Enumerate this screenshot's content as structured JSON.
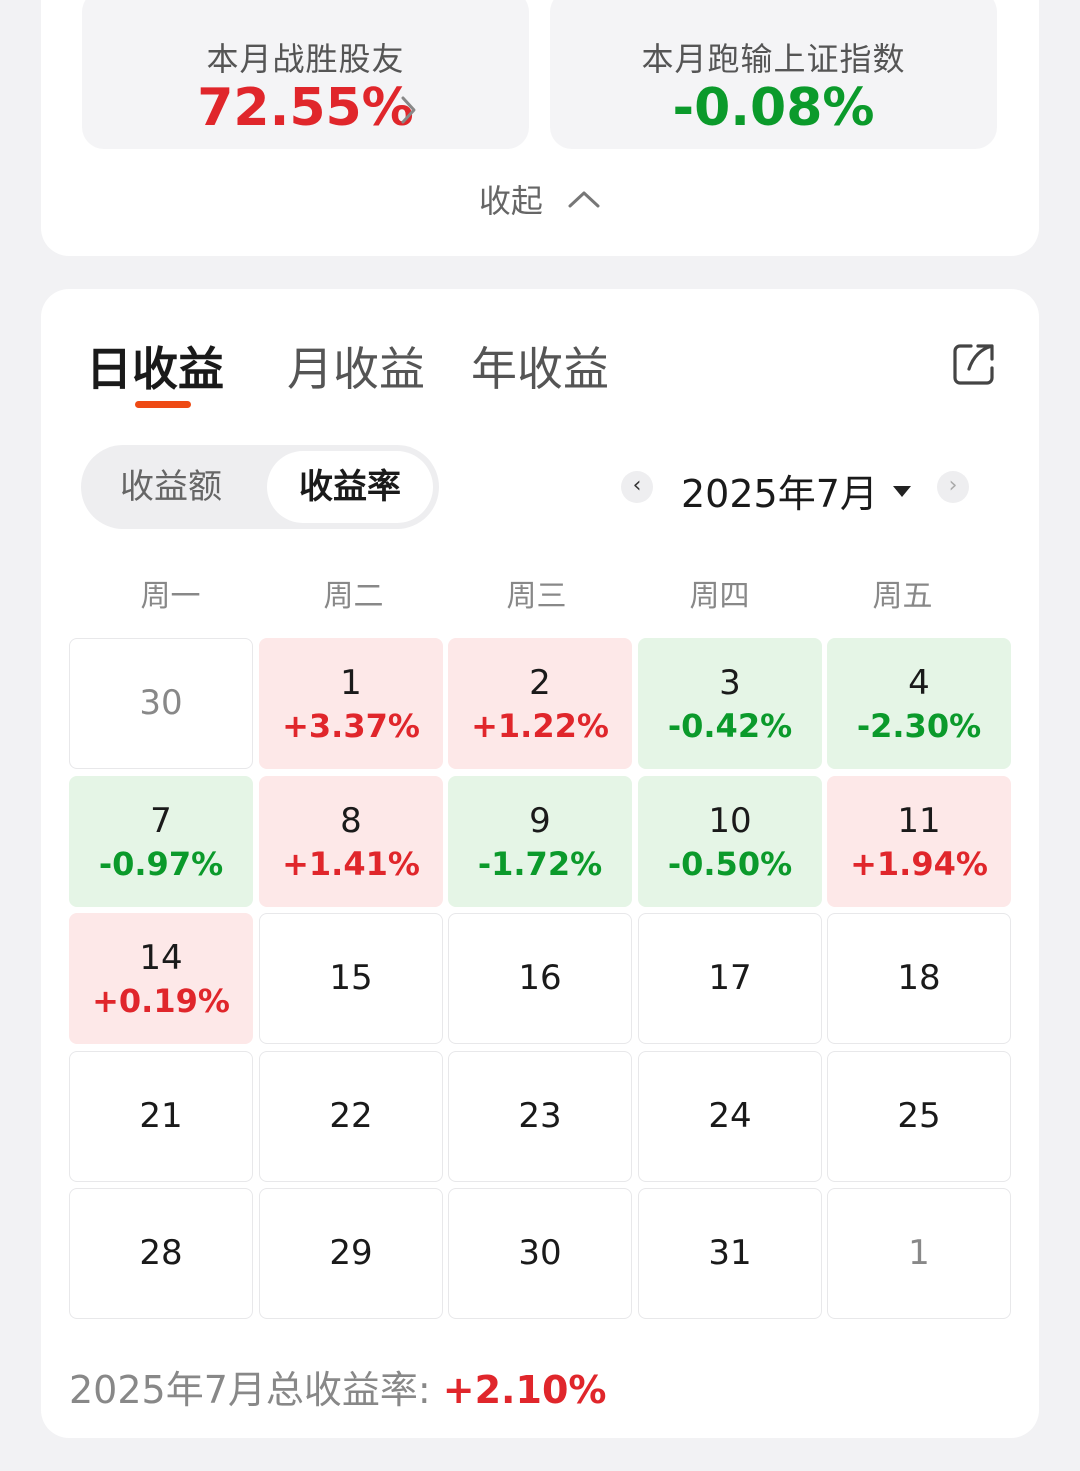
{
  "summary_cards": {
    "win_label": "本月战胜股友",
    "win_value": "72.55%",
    "index_label": "本月跑输上证指数",
    "index_value": "-0.08%",
    "collapse_label": "收起"
  },
  "tabs": {
    "day": "日收益",
    "month": "月收益",
    "year": "年收益",
    "active": "日收益"
  },
  "toggle": {
    "amount": "收益额",
    "rate": "收益率",
    "active": "收益率"
  },
  "month_selector": {
    "label": "2025年7月"
  },
  "weekdays": [
    "周一",
    "周二",
    "周三",
    "周四",
    "周五"
  ],
  "calendar": [
    [
      {
        "day": "30",
        "pct": "",
        "type": "other"
      },
      {
        "day": "1",
        "pct": "+3.37%",
        "type": "up"
      },
      {
        "day": "2",
        "pct": "+1.22%",
        "type": "up"
      },
      {
        "day": "3",
        "pct": "-0.42%",
        "type": "down"
      },
      {
        "day": "4",
        "pct": "-2.30%",
        "type": "down"
      }
    ],
    [
      {
        "day": "7",
        "pct": "-0.97%",
        "type": "down"
      },
      {
        "day": "8",
        "pct": "+1.41%",
        "type": "up"
      },
      {
        "day": "9",
        "pct": "-1.72%",
        "type": "down"
      },
      {
        "day": "10",
        "pct": "-0.50%",
        "type": "down"
      },
      {
        "day": "11",
        "pct": "+1.94%",
        "type": "up"
      }
    ],
    [
      {
        "day": "14",
        "pct": "+0.19%",
        "type": "up"
      },
      {
        "day": "15",
        "pct": "",
        "type": "empty"
      },
      {
        "day": "16",
        "pct": "",
        "type": "empty"
      },
      {
        "day": "17",
        "pct": "",
        "type": "empty"
      },
      {
        "day": "18",
        "pct": "",
        "type": "empty"
      }
    ],
    [
      {
        "day": "21",
        "pct": "",
        "type": "empty"
      },
      {
        "day": "22",
        "pct": "",
        "type": "empty"
      },
      {
        "day": "23",
        "pct": "",
        "type": "empty"
      },
      {
        "day": "24",
        "pct": "",
        "type": "empty"
      },
      {
        "day": "25",
        "pct": "",
        "type": "empty"
      }
    ],
    [
      {
        "day": "28",
        "pct": "",
        "type": "empty"
      },
      {
        "day": "29",
        "pct": "",
        "type": "empty"
      },
      {
        "day": "30",
        "pct": "",
        "type": "empty"
      },
      {
        "day": "31",
        "pct": "",
        "type": "empty"
      },
      {
        "day": "1",
        "pct": "",
        "type": "other"
      }
    ]
  ],
  "summary": {
    "label": "2025年7月总收益率:",
    "value": "+2.10%"
  },
  "colors": {
    "up": "#e0262b",
    "down": "#0b9a2b",
    "up_bg": "#fde8e8",
    "down_bg": "#e5f5e6",
    "accent": "#ee4a14"
  },
  "icons": {
    "stat_chevron": "chevron-right-icon",
    "collapse": "chevron-up-icon",
    "share": "share-icon",
    "prev": "chevron-left-icon",
    "next": "chevron-right-icon",
    "dropdown": "caret-down-icon"
  }
}
